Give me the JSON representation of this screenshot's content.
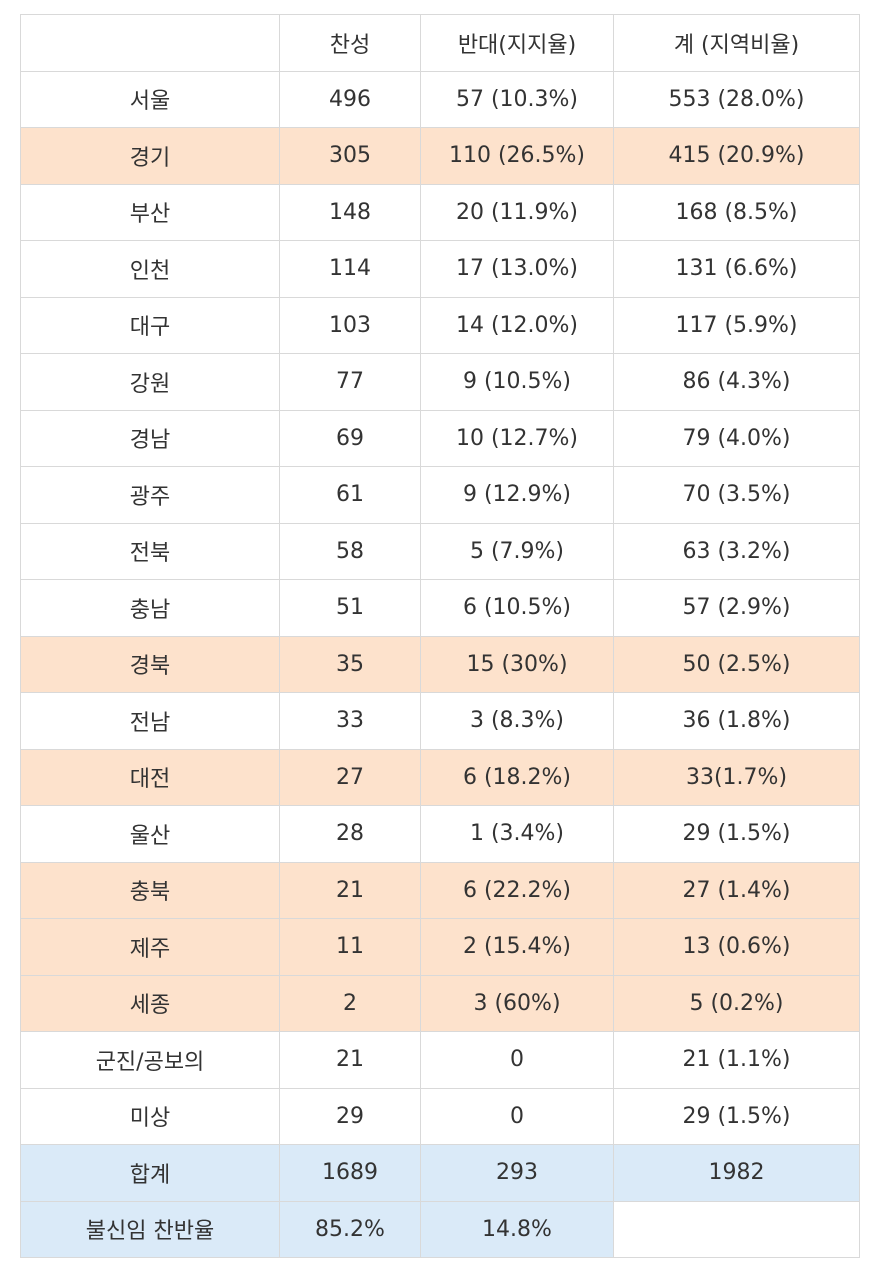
{
  "table": {
    "headers": [
      "",
      "찬성",
      "반대(지지율)",
      "계 (지역비율)"
    ],
    "rows": [
      {
        "region": "서울",
        "yes": "496",
        "no": "57 (10.3%)",
        "total": "553 (28.0%)",
        "highlight": false
      },
      {
        "region": "경기",
        "yes": "305",
        "no": "110 (26.5%)",
        "total": "415 (20.9%)",
        "highlight": true
      },
      {
        "region": "부산",
        "yes": "148",
        "no": "20 (11.9%)",
        "total": "168 (8.5%)",
        "highlight": false
      },
      {
        "region": "인천",
        "yes": "114",
        "no": "17 (13.0%)",
        "total": "131 (6.6%)",
        "highlight": false
      },
      {
        "region": "대구",
        "yes": "103",
        "no": "14 (12.0%)",
        "total": "117 (5.9%)",
        "highlight": false
      },
      {
        "region": "강원",
        "yes": "77",
        "no": "9 (10.5%)",
        "total": "86 (4.3%)",
        "highlight": false
      },
      {
        "region": "경남",
        "yes": "69",
        "no": "10 (12.7%)",
        "total": "79 (4.0%)",
        "highlight": false
      },
      {
        "region": "광주",
        "yes": "61",
        "no": "9 (12.9%)",
        "total": "70 (3.5%)",
        "highlight": false
      },
      {
        "region": "전북",
        "yes": "58",
        "no": "5 (7.9%)",
        "total": "63 (3.2%)",
        "highlight": false
      },
      {
        "region": "충남",
        "yes": "51",
        "no": "6 (10.5%)",
        "total": "57 (2.9%)",
        "highlight": false
      },
      {
        "region": "경북",
        "yes": "35",
        "no": "15 (30%)",
        "total": "50 (2.5%)",
        "highlight": true
      },
      {
        "region": "전남",
        "yes": "33",
        "no": "3 (8.3%)",
        "total": "36 (1.8%)",
        "highlight": false
      },
      {
        "region": "대전",
        "yes": "27",
        "no": "6 (18.2%)",
        "total": "33(1.7%)",
        "highlight": true
      },
      {
        "region": "울산",
        "yes": "28",
        "no": "1 (3.4%)",
        "total": "29 (1.5%)",
        "highlight": false
      },
      {
        "region": "충북",
        "yes": "21",
        "no": "6 (22.2%)",
        "total": "27 (1.4%)",
        "highlight": true
      },
      {
        "region": "제주",
        "yes": "11",
        "no": "2 (15.4%)",
        "total": "13 (0.6%)",
        "highlight": true
      },
      {
        "region": "세종",
        "yes": "2",
        "no": "3 (60%)",
        "total": "5 (0.2%)",
        "highlight": true
      },
      {
        "region": "군진/공보의",
        "yes": "21",
        "no": "0",
        "total": "21 (1.1%)",
        "highlight": false
      },
      {
        "region": "미상",
        "yes": "29",
        "no": "0",
        "total": "29 (1.5%)",
        "highlight": false
      }
    ],
    "sum": {
      "region": "합계",
      "yes": "1689",
      "no": "293",
      "total": "1982"
    },
    "ratio": {
      "region": "불신임 찬반율",
      "yes": "85.2%",
      "no": "14.8%",
      "total": ""
    },
    "colors": {
      "highlight": "#fde2cc",
      "summary": "#daeaf8",
      "border": "#d9d9d9",
      "text": "#333333"
    }
  }
}
